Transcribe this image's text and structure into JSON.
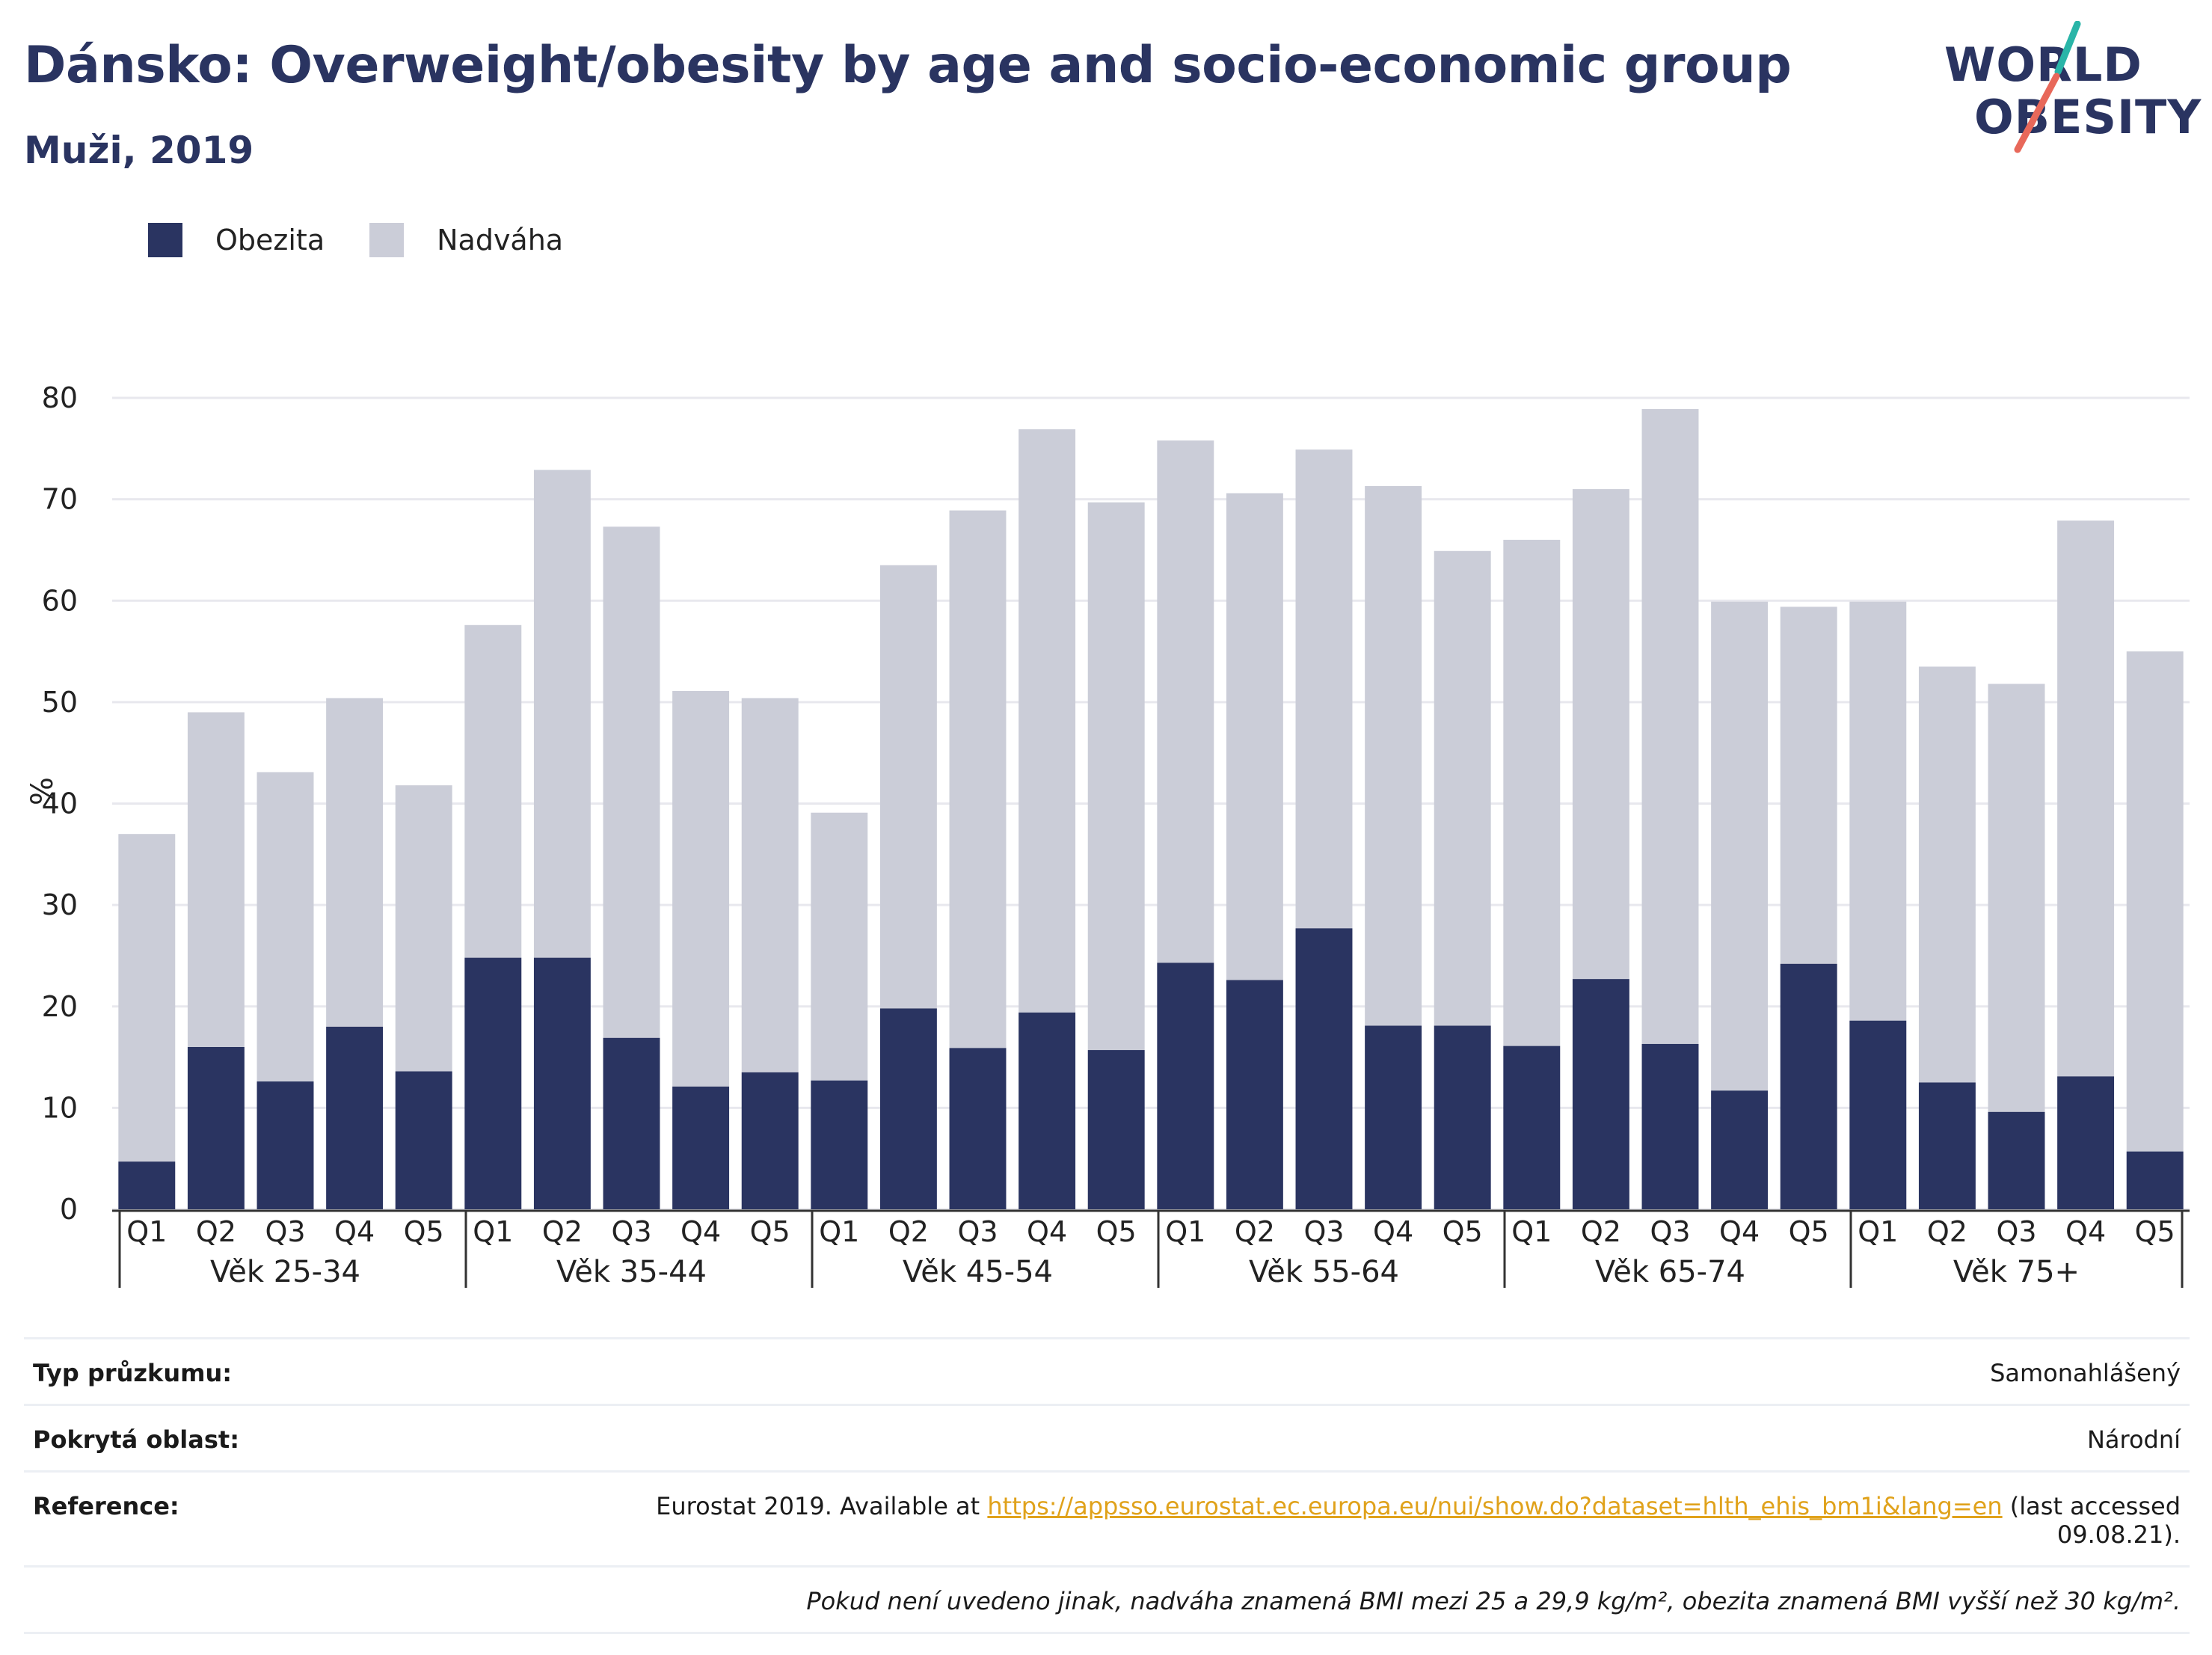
{
  "title": "Dánsko: Overweight/obesity by age and socio-economic group",
  "subtitle": "Muži, 2019",
  "logo": {
    "line1": "WORLD",
    "line2": "OBESITY",
    "accent_teal": "#2ab5a8",
    "accent_red": "#e8685a"
  },
  "colors": {
    "obesity": "#2a3461",
    "overweight": "#cbcdd8",
    "grid": "#e8e8ee",
    "axis": "#333333"
  },
  "legend": {
    "obesity_label": "Obezita",
    "overweight_label": "Nadváha"
  },
  "chart_data": {
    "type": "bar",
    "stacked": true,
    "ylabel": "%",
    "ylim": [
      0,
      80
    ],
    "yticks": [
      0,
      10,
      20,
      30,
      40,
      50,
      60,
      70,
      80
    ],
    "grid": true,
    "legend_position": "top-left",
    "groups": [
      {
        "label": "Věk 25-34",
        "categories": [
          "Q1",
          "Q2",
          "Q3",
          "Q4",
          "Q5"
        ],
        "obesity": [
          4.7,
          16.0,
          12.6,
          18.0,
          13.6
        ],
        "total": [
          37.0,
          49.0,
          43.1,
          50.4,
          41.8
        ]
      },
      {
        "label": "Věk 35-44",
        "categories": [
          "Q1",
          "Q2",
          "Q3",
          "Q4",
          "Q5"
        ],
        "obesity": [
          24.8,
          24.8,
          16.9,
          12.1,
          13.5
        ],
        "total": [
          57.6,
          72.9,
          67.3,
          51.1,
          50.4
        ]
      },
      {
        "label": "Věk 45-54",
        "categories": [
          "Q1",
          "Q2",
          "Q3",
          "Q4",
          "Q5"
        ],
        "obesity": [
          12.7,
          19.8,
          15.9,
          19.4,
          15.7
        ],
        "total": [
          39.1,
          63.5,
          68.9,
          76.9,
          69.7
        ]
      },
      {
        "label": "Věk 55-64",
        "categories": [
          "Q1",
          "Q2",
          "Q3",
          "Q4",
          "Q5"
        ],
        "obesity": [
          24.3,
          22.6,
          27.7,
          18.1,
          18.1
        ],
        "total": [
          75.8,
          70.6,
          74.9,
          71.3,
          64.9
        ]
      },
      {
        "label": "Věk 65-74",
        "categories": [
          "Q1",
          "Q2",
          "Q3",
          "Q4",
          "Q5"
        ],
        "obesity": [
          16.1,
          22.7,
          16.3,
          11.7,
          24.2
        ],
        "total": [
          66.0,
          71.0,
          78.9,
          59.9,
          59.4
        ]
      },
      {
        "label": "Věk 75+",
        "categories": [
          "Q1",
          "Q2",
          "Q3",
          "Q4",
          "Q5"
        ],
        "obesity": [
          18.6,
          12.5,
          9.6,
          13.1,
          5.7
        ],
        "total": [
          59.9,
          53.5,
          51.8,
          67.9,
          55.0
        ]
      }
    ]
  },
  "info": {
    "survey_label": "Typ průzkumu:",
    "survey_value": "Samonahlášený",
    "area_label": "Pokrytá oblast:",
    "area_value": "Národní",
    "reference_label": "Reference:",
    "reference_prefix": "Eurostat 2019. Available at ",
    "reference_link": "https://appsso.eurostat.ec.europa.eu/nui/show.do?dataset=hlth_ehis_bm1i&lang=en",
    "reference_suffix": " (last accessed",
    "reference_date": "09.08.21).",
    "note": "Pokud není uvedeno jinak, nadváha znamená BMI mezi 25 a 29,9 kg/m², obezita znamená BMI vyšší než 30 kg/m²."
  }
}
